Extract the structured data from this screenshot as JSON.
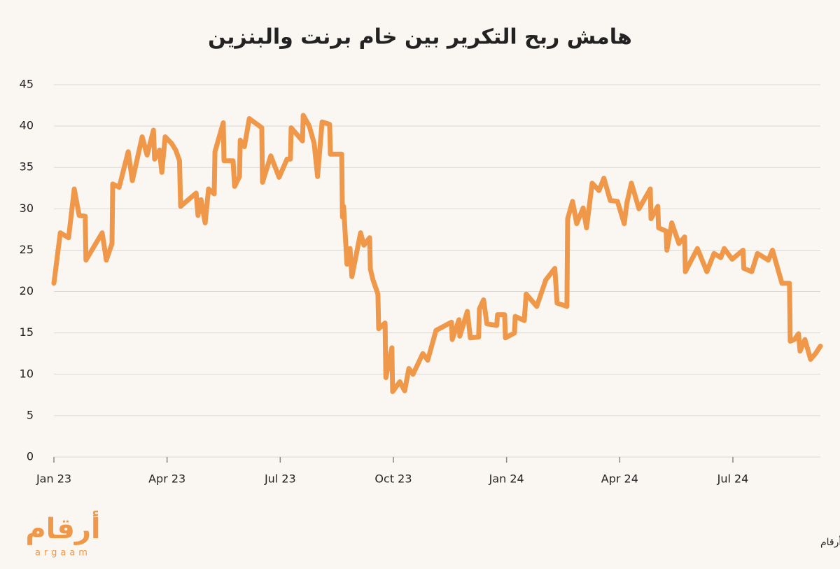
{
  "chart_data": {
    "type": "line",
    "title": "هامش ربح التكرير بين خام برنت والبنزين",
    "source": "المصدر : ABN AMRO الاقتصادية / أرقام",
    "logo": {
      "name": "أرقام",
      "latin": "argaam"
    },
    "x": [
      0,
      0.17,
      0.39,
      0.54,
      0.67,
      0.83,
      0.85,
      1.28,
      1.39,
      1.54,
      1.56,
      1.73,
      1.97,
      2.08,
      2.34,
      2.47,
      2.64,
      2.67,
      2.8,
      2.86,
      2.95,
      3.12,
      3.23,
      3.33,
      3.36,
      3.77,
      3.82,
      3.9,
      4.01,
      4.1,
      4.25,
      4.27,
      4.49,
      4.51,
      4.75,
      4.79,
      4.92,
      4.94,
      5.05,
      5.18,
      5.51,
      5.53,
      5.75,
      5.97,
      6.18,
      6.27,
      6.29,
      6.59,
      6.61,
      6.77,
      6.9,
      6.99,
      7.11,
      7.31,
      7.33,
      7.63,
      7.65,
      7.68,
      7.77,
      7.85,
      7.9,
      8.13,
      8.22,
      8.37,
      8.39,
      8.46,
      8.59,
      8.61,
      8.78,
      8.8,
      8.96,
      8.98,
      9.17,
      9.3,
      9.41,
      9.52,
      9.78,
      9.91,
      10.13,
      10.54,
      10.56,
      10.74,
      10.76,
      10.96,
      11.04,
      11.26,
      11.28,
      11.39,
      11.48,
      11.74,
      11.76,
      11.95,
      11.97,
      12.21,
      12.23,
      12.47,
      12.52,
      12.8,
      13.04,
      13.28,
      13.34,
      13.6,
      13.62,
      13.75,
      13.86,
      14.03,
      14.12,
      14.27,
      14.45,
      14.58,
      14.75,
      14.94,
      15.12,
      15.19,
      15.31,
      15.51,
      15.81,
      15.83,
      16.01,
      16.03,
      16.23,
      16.25,
      16.38,
      16.57,
      16.72,
      16.74,
      17.06,
      17.31,
      17.5,
      17.68,
      17.77,
      17.98,
      18.27,
      18.29,
      18.5,
      18.65,
      18.94,
      19.05,
      19.3,
      19.5,
      19.52,
      19.63,
      19.74,
      19.78,
      19.91,
      20.06,
      20.19,
      20.32
    ],
    "series": [
      {
        "name": "هامش ربح التكرير",
        "color": "#f0984a",
        "values": [
          21.0,
          27.1,
          26.5,
          32.4,
          29.2,
          29.1,
          23.8,
          27.1,
          23.8,
          25.8,
          33.0,
          32.6,
          36.9,
          33.4,
          38.7,
          36.5,
          39.5,
          36.0,
          37.1,
          34.4,
          38.7,
          37.9,
          37.1,
          35.8,
          30.3,
          31.9,
          29.2,
          31.1,
          28.3,
          32.4,
          31.8,
          36.9,
          40.4,
          35.8,
          35.8,
          32.7,
          33.9,
          38.3,
          37.5,
          40.9,
          39.8,
          33.2,
          36.4,
          33.8,
          36.0,
          36.0,
          39.8,
          38.2,
          41.3,
          40.0,
          37.9,
          33.9,
          40.5,
          40.2,
          36.6,
          36.6,
          29.0,
          30.3,
          23.3,
          25.2,
          21.8,
          27.1,
          25.6,
          26.5,
          22.7,
          21.4,
          19.7,
          15.5,
          16.2,
          9.6,
          13.2,
          7.9,
          9.1,
          8.0,
          10.7,
          10.0,
          12.5,
          11.7,
          15.3,
          16.3,
          14.2,
          16.6,
          14.6,
          17.6,
          14.4,
          14.5,
          17.9,
          19.0,
          16.1,
          15.9,
          17.2,
          17.2,
          14.4,
          15.0,
          17.0,
          16.5,
          19.7,
          18.2,
          21.4,
          22.8,
          18.6,
          18.2,
          28.8,
          30.9,
          28.2,
          30.1,
          27.7,
          33.1,
          32.2,
          33.7,
          31.0,
          30.9,
          28.2,
          30.7,
          33.1,
          30.0,
          32.4,
          28.8,
          30.3,
          27.7,
          27.3,
          25.0,
          28.3,
          25.8,
          26.6,
          22.4,
          25.2,
          22.4,
          24.6,
          24.1,
          25.2,
          23.9,
          25.0,
          22.8,
          22.4,
          24.6,
          23.8,
          25.0,
          21.0,
          21.0,
          14.0,
          14.2,
          14.9,
          12.8,
          14.2,
          11.8,
          12.5,
          13.4
        ]
      }
    ],
    "xlim": [
      0,
      20.32
    ],
    "xticks": [
      {
        "value": 0,
        "label": "Jan 23"
      },
      {
        "value": 3,
        "label": "Apr 23"
      },
      {
        "value": 6,
        "label": "Jul 23"
      },
      {
        "value": 9,
        "label": "Oct 23"
      },
      {
        "value": 12,
        "label": "Jan 24"
      },
      {
        "value": 15,
        "label": "Apr 24"
      },
      {
        "value": 18,
        "label": "Jul 24"
      }
    ],
    "ylim": [
      0,
      45
    ],
    "yticks": [
      0,
      5,
      10,
      15,
      20,
      25,
      30,
      35,
      40,
      45
    ],
    "grid": true
  }
}
